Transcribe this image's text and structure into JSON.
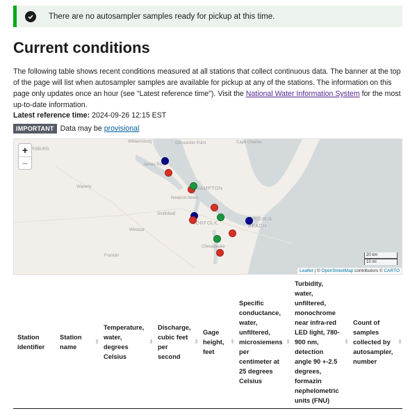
{
  "alert": {
    "text": "There are no autosampler samples ready for pickup at this time."
  },
  "page_title": "Current conditions",
  "intro": {
    "text_before": "The following table shows recent conditions measured at all stations that collect continuous data. The banner at the top of the page will list when autosampler samples are available for pickup at any of the stations. The information on this page only updates once an hour (see \"Latest reference time\"). Visit the ",
    "link": "National Water Information System",
    "text_after": " for the most up-to-date information."
  },
  "reference": {
    "label": "Latest reference time:",
    "value": "2024-09-26 12:15 EST"
  },
  "notice": {
    "tag": "IMPORTANT",
    "text": "Data may be",
    "link": "provisional"
  },
  "map": {
    "zoom_in": "+",
    "zoom_out": "−",
    "labels": {
      "williamsburg": "Williamsburg",
      "gloucester": "Gloucester Point",
      "capecharles": "Cape Charles",
      "jamesriver": "James River",
      "waverly": "Waverly",
      "hampton": "HAMPTON",
      "newportnews": "Newport News",
      "norfolk": "NORFOLK",
      "virginiabeach1": "VIRGINIA",
      "virginiabeach2": "BEACH",
      "windsor": "Windsor",
      "franklin": "Franklin",
      "chesapeake": "Chesapeake",
      "sburg": "RSBURG",
      "town1": "Smithfield"
    },
    "scale_km": "20 km",
    "scale_mi": "10 mi",
    "attribution": {
      "leaflet": "Leaflet",
      "sep": " | © ",
      "osm": "OpenStreetMap",
      "contrib": " contributors © ",
      "carto": "CARTO"
    },
    "colors": {
      "red": "#d73027",
      "green": "#1a9641",
      "blue": "#08088a"
    }
  },
  "table": {
    "headers": [
      "Station identifier",
      "Station name",
      "Temperature, water, degrees Celsius",
      "Discharge, cubic feet per second",
      "Gage height, feet",
      "Specific conductance, water, unfiltered, microsiemens per centimeter at 25 degrees Celsius",
      "Turbidity, water, unfiltered, monochrome near infra-red LED light, 780-900 nm, detection angle 90 +-2.5 degrees, formazin nephelometric units (FNU)",
      "Count of samples collected by autosampler, number"
    ],
    "sort_icon": "⇕"
  }
}
